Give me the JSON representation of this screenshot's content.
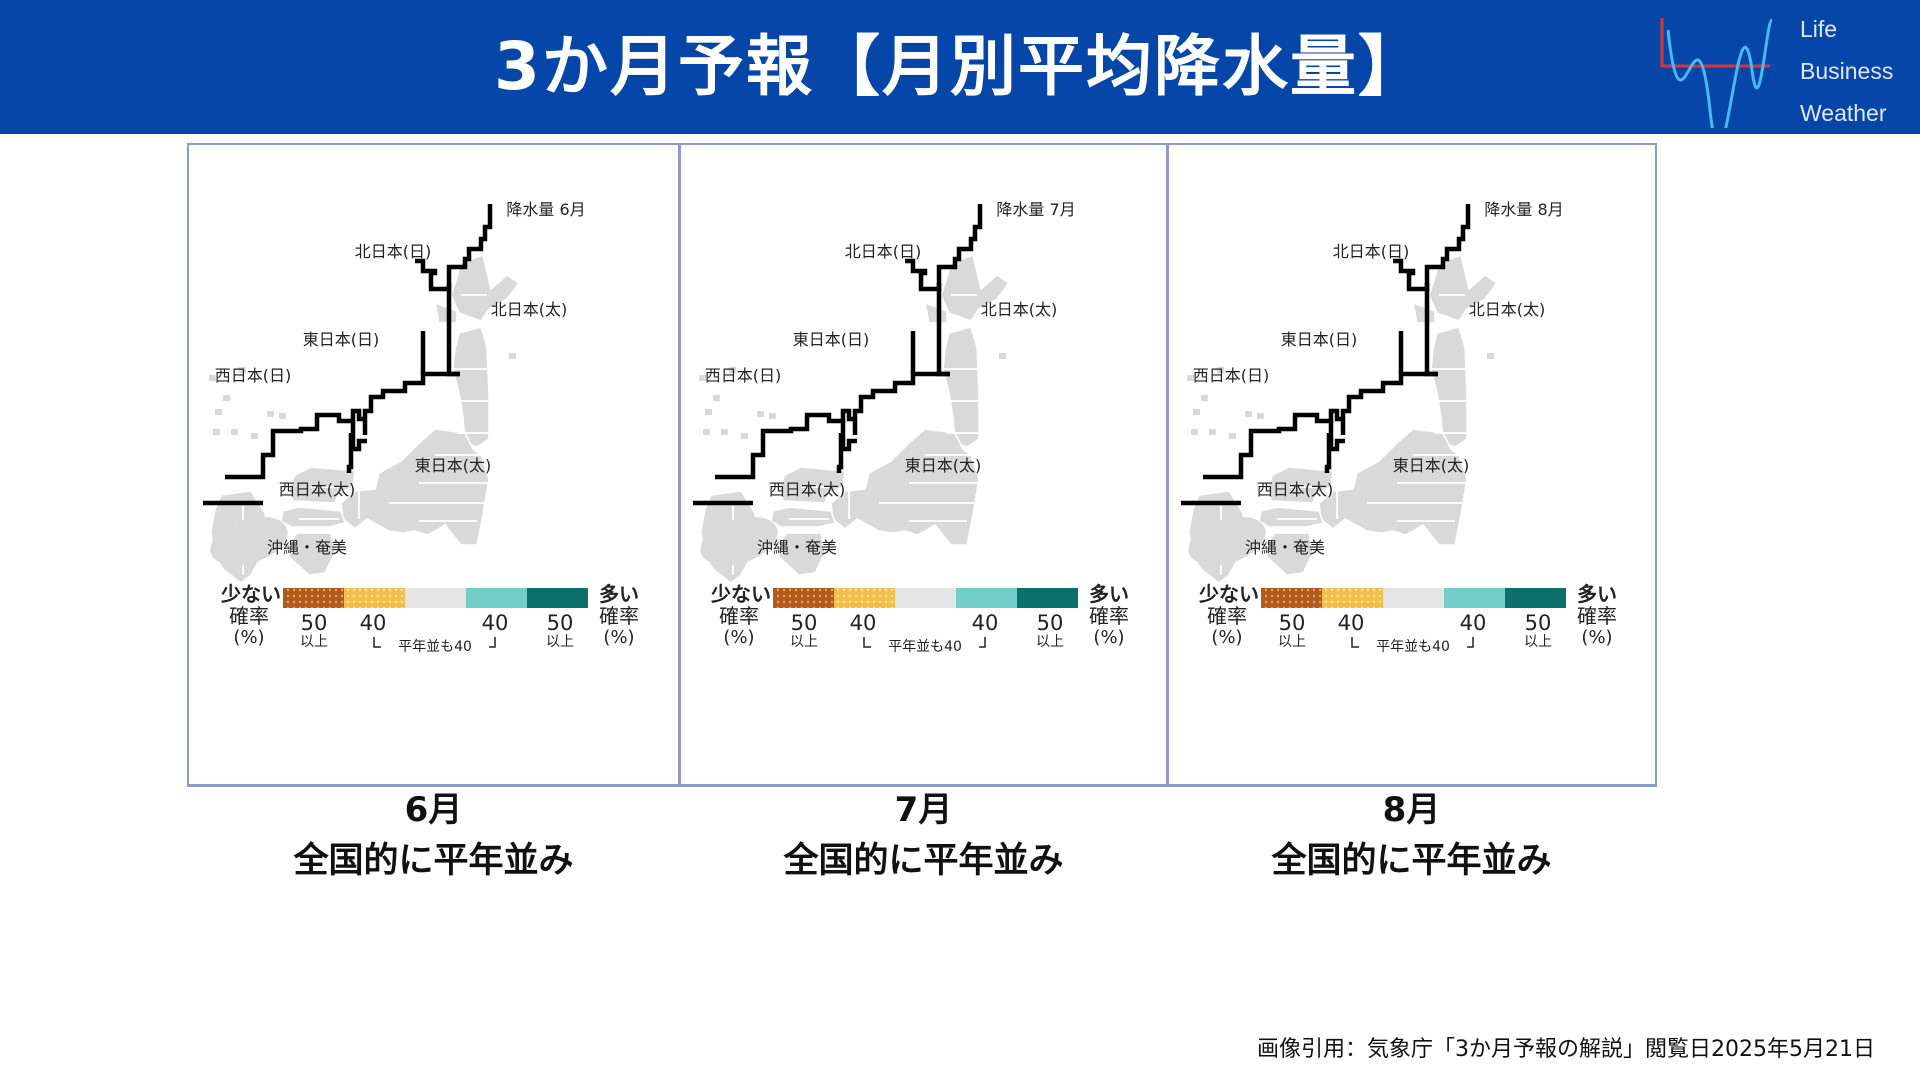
{
  "header": {
    "title": "3か月予報【月別平均降水量】",
    "background_color": "#0646a8",
    "logo_words": [
      "Life",
      "Business",
      "Weather"
    ]
  },
  "panels": [
    {
      "map_title": "降水量 6月",
      "region_labels": [
        "北日本(日)",
        "北日本(太)",
        "東日本(日)",
        "西日本(日)",
        "東日本(太)",
        "西日本(太)",
        "沖縄・奄美"
      ],
      "legend": {
        "left_title": [
          "少ない",
          "確率",
          "(%)"
        ],
        "right_title": [
          "多い",
          "確率",
          "(%)"
        ],
        "values": [
          "50",
          "40",
          "40",
          "50"
        ],
        "ijou": "以上",
        "heinen_label": "平年並も40",
        "colors": [
          "#b05a1c",
          "#f2bf4e",
          "#e4e4e4",
          "#72ccc8",
          "#0b6f6a"
        ]
      },
      "caption_month": "6月",
      "caption_text": "全国的に平年並み"
    },
    {
      "map_title": "降水量 7月",
      "region_labels": [
        "北日本(日)",
        "北日本(太)",
        "東日本(日)",
        "西日本(日)",
        "東日本(太)",
        "西日本(太)",
        "沖縄・奄美"
      ],
      "legend": {
        "left_title": [
          "少ない",
          "確率",
          "(%)"
        ],
        "right_title": [
          "多い",
          "確率",
          "(%)"
        ],
        "values": [
          "50",
          "40",
          "40",
          "50"
        ],
        "ijou": "以上",
        "heinen_label": "平年並も40",
        "colors": [
          "#b05a1c",
          "#f2bf4e",
          "#e4e4e4",
          "#72ccc8",
          "#0b6f6a"
        ]
      },
      "caption_month": "7月",
      "caption_text": "全国的に平年並み"
    },
    {
      "map_title": "降水量 8月",
      "region_labels": [
        "北日本(日)",
        "北日本(太)",
        "東日本(日)",
        "西日本(日)",
        "東日本(太)",
        "西日本(太)",
        "沖縄・奄美"
      ],
      "legend": {
        "left_title": [
          "少ない",
          "確率",
          "(%)"
        ],
        "right_title": [
          "多い",
          "確率",
          "(%)"
        ],
        "values": [
          "50",
          "40",
          "40",
          "50"
        ],
        "ijou": "以上",
        "heinen_label": "平年並も40",
        "colors": [
          "#b05a1c",
          "#f2bf4e",
          "#e4e4e4",
          "#72ccc8",
          "#0b6f6a"
        ]
      },
      "caption_month": "8月",
      "caption_text": "全国的に平年並み"
    }
  ],
  "footer": {
    "source": "画像引用：気象庁「3か月予報の解説」閲覧日2025年5月21日"
  }
}
